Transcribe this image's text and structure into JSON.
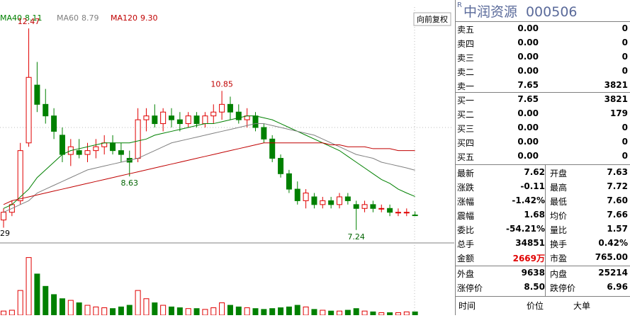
{
  "chart_data": {
    "type": "candlestick",
    "adjust_label": "向前复权",
    "left_label": "29",
    "ylim": [
      6.96,
      12.95
    ],
    "volume_ylim": [
      0,
      80
    ],
    "up_color": "#e00000",
    "down_color": "#008000",
    "open": [
      7.5,
      7.7,
      8.0,
      9.5,
      11.0,
      10.5,
      10.2,
      9.7,
      9.2,
      9.3,
      9.2,
      9.3,
      9.4,
      9.5,
      9.3,
      9.1,
      9.1,
      10.1,
      10.2,
      10.0,
      10.2,
      10.1,
      10.0,
      10.2,
      10.0,
      10.2,
      10.3,
      10.5,
      10.3,
      10.1,
      10.2,
      9.9,
      9.6,
      9.1,
      8.7,
      8.3,
      8.0,
      8.1,
      7.9,
      8.0,
      7.9,
      8.1,
      7.9,
      7.8,
      7.9,
      7.8,
      7.8,
      7.7,
      7.7,
      7.63
    ],
    "high": [
      7.8,
      8.0,
      9.5,
      12.47,
      11.6,
      10.9,
      10.4,
      9.9,
      9.6,
      9.6,
      9.5,
      9.6,
      9.7,
      9.7,
      9.5,
      9.3,
      10.4,
      10.4,
      10.5,
      10.4,
      10.4,
      10.3,
      10.3,
      10.3,
      10.3,
      10.5,
      10.85,
      10.7,
      10.5,
      10.4,
      10.3,
      10.0,
      9.7,
      9.2,
      8.8,
      8.5,
      8.3,
      8.2,
      8.1,
      8.1,
      8.2,
      8.2,
      8.0,
      8.0,
      8.0,
      7.9,
      7.9,
      7.8,
      7.8,
      7.72
    ],
    "low": [
      7.3,
      7.6,
      7.9,
      9.4,
      10.3,
      10.0,
      9.6,
      9.0,
      8.9,
      9.1,
      9.0,
      9.1,
      9.2,
      9.2,
      9.0,
      8.63,
      9.0,
      9.8,
      9.9,
      9.8,
      9.9,
      9.8,
      9.9,
      9.9,
      9.9,
      10.0,
      10.1,
      10.1,
      10.0,
      9.9,
      9.8,
      9.5,
      9.0,
      8.6,
      8.2,
      7.9,
      7.8,
      7.8,
      7.8,
      7.8,
      7.8,
      7.9,
      7.24,
      7.7,
      7.7,
      7.7,
      7.6,
      7.6,
      7.6,
      7.6
    ],
    "close": [
      7.7,
      7.9,
      9.3,
      11.2,
      10.5,
      10.2,
      9.8,
      9.2,
      9.4,
      9.2,
      9.3,
      9.4,
      9.5,
      9.3,
      9.2,
      9.0,
      10.1,
      10.2,
      10.0,
      10.3,
      10.1,
      10.0,
      10.2,
      10.0,
      10.2,
      10.3,
      10.5,
      10.3,
      10.1,
      10.2,
      9.9,
      9.6,
      9.1,
      8.7,
      8.3,
      8.0,
      8.2,
      7.9,
      8.0,
      7.9,
      8.1,
      8.0,
      7.8,
      7.9,
      7.8,
      7.8,
      7.7,
      7.7,
      7.7,
      7.62
    ],
    "volume": [
      5,
      6,
      30,
      70,
      50,
      35,
      25,
      20,
      18,
      15,
      12,
      10,
      9,
      8,
      10,
      12,
      30,
      20,
      15,
      12,
      10,
      9,
      8,
      8,
      7,
      9,
      15,
      12,
      10,
      9,
      8,
      7,
      8,
      9,
      10,
      12,
      10,
      7,
      6,
      5,
      5,
      6,
      8,
      5,
      4,
      3,
      3,
      3,
      4,
      4
    ],
    "annotations": [
      {
        "index": 3,
        "field": "high",
        "label": "12.47",
        "color": "#c00000"
      },
      {
        "index": 26,
        "field": "high",
        "label": "10.85",
        "color": "#c00000"
      },
      {
        "index": 15,
        "field": "low",
        "label": "8.63",
        "color": "#006400"
      },
      {
        "index": 42,
        "field": "low",
        "label": "7.24",
        "color": "#006400"
      }
    ],
    "series": [
      {
        "name": "MA40",
        "last_label": "8.11",
        "color": "#008000",
        "values": [
          7.8,
          7.9,
          8.1,
          8.3,
          8.6,
          8.8,
          9.0,
          9.2,
          9.3,
          9.35,
          9.4,
          9.45,
          9.5,
          9.5,
          9.5,
          9.5,
          9.55,
          9.6,
          9.7,
          9.75,
          9.8,
          9.85,
          9.9,
          9.95,
          10.0,
          10.0,
          10.05,
          10.1,
          10.15,
          10.2,
          10.2,
          10.15,
          10.1,
          10.0,
          9.9,
          9.8,
          9.7,
          9.6,
          9.5,
          9.4,
          9.3,
          9.15,
          9.0,
          8.85,
          8.7,
          8.55,
          8.45,
          8.3,
          8.2,
          8.11
        ]
      },
      {
        "name": "MA60",
        "last_label": "8.79",
        "color": "#808080",
        "values": [
          7.7,
          7.8,
          7.9,
          8.0,
          8.2,
          8.3,
          8.4,
          8.5,
          8.6,
          8.7,
          8.8,
          8.85,
          8.9,
          8.95,
          9.0,
          9.05,
          9.1,
          9.2,
          9.3,
          9.4,
          9.5,
          9.55,
          9.6,
          9.65,
          9.7,
          9.75,
          9.8,
          9.85,
          9.9,
          9.95,
          10.0,
          10.0,
          9.95,
          9.9,
          9.85,
          9.8,
          9.75,
          9.7,
          9.6,
          9.5,
          9.4,
          9.3,
          9.2,
          9.15,
          9.1,
          9.0,
          8.95,
          8.9,
          8.85,
          8.79
        ]
      },
      {
        "name": "MA120",
        "last_label": "9.30",
        "color": "#c00000",
        "values": [
          7.9,
          8.0,
          8.05,
          8.1,
          8.15,
          8.2,
          8.25,
          8.3,
          8.35,
          8.4,
          8.45,
          8.5,
          8.55,
          8.6,
          8.65,
          8.7,
          8.75,
          8.8,
          8.85,
          8.9,
          8.95,
          9.0,
          9.05,
          9.1,
          9.15,
          9.2,
          9.25,
          9.3,
          9.35,
          9.4,
          9.45,
          9.5,
          9.5,
          9.5,
          9.5,
          9.5,
          9.5,
          9.5,
          9.5,
          9.45,
          9.45,
          9.4,
          9.4,
          9.4,
          9.35,
          9.35,
          9.35,
          9.3,
          9.3,
          9.3
        ]
      }
    ]
  },
  "quote": {
    "title_mark": "R",
    "name": "中润资源",
    "code": "000506",
    "sells": [
      [
        "卖五",
        "0.00",
        "0"
      ],
      [
        "卖四",
        "0.00",
        "0"
      ],
      [
        "卖三",
        "0.00",
        "0"
      ],
      [
        "卖二",
        "0.00",
        "0"
      ],
      [
        "卖一",
        "7.65",
        "3821"
      ]
    ],
    "buys": [
      [
        "买一",
        "7.65",
        "3821"
      ],
      [
        "买二",
        "0.00",
        "179"
      ],
      [
        "买三",
        "0.00",
        "0"
      ],
      [
        "买四",
        "0.00",
        "0"
      ],
      [
        "买五",
        "0.00",
        "0"
      ]
    ],
    "stats": [
      [
        "最新",
        "7.62",
        "开盘",
        "7.63"
      ],
      [
        "涨跌",
        "-0.11",
        "最高",
        "7.72"
      ],
      [
        "涨幅",
        "-1.42%",
        "最低",
        "7.60"
      ],
      [
        "震幅",
        "1.68",
        "均价",
        "7.66"
      ],
      [
        "委比",
        "-54.21%",
        "量比",
        "1.57"
      ],
      [
        "总手",
        "34851",
        "换手",
        "0.42%"
      ],
      [
        "金额",
        "2669万",
        "市盈",
        "765.00"
      ]
    ],
    "trade": [
      [
        "外盘",
        "9638",
        "内盘",
        "25214"
      ],
      [
        "涨停价",
        "8.50",
        "跌停价",
        "6.96"
      ]
    ],
    "footer": [
      "时间",
      "价位",
      "大单"
    ]
  }
}
